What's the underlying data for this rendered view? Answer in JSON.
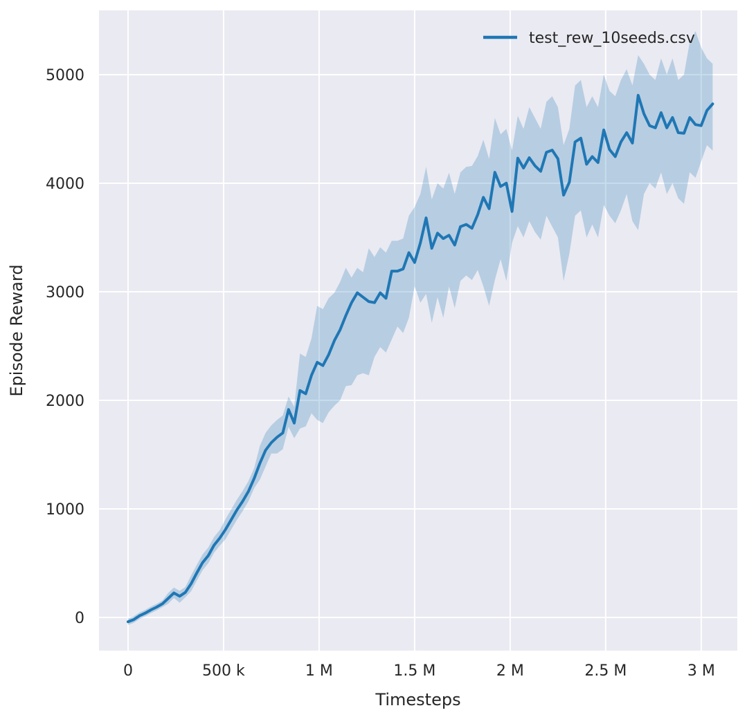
{
  "figure": {
    "background_color": "#ffffff",
    "plot_background_color": "#eaeaf2",
    "gridline_color": "#ffffff",
    "text_color": "#262626"
  },
  "chart_data": {
    "type": "line",
    "title": "",
    "xlabel": "Timesteps",
    "ylabel": "Episode Reward",
    "grid": true,
    "legend_position": "upper right",
    "legend": [
      {
        "label": "test_rew_10seeds.csv",
        "color": "#1f77b4"
      }
    ],
    "xlim": [
      -152000,
      3189000
    ],
    "ylim": [
      -306,
      5592
    ],
    "x_tick_values": [
      0,
      500000,
      1000000,
      1500000,
      2000000,
      2500000,
      3000000
    ],
    "x_tick_labels": [
      "0",
      "500 k",
      "1 M",
      "1.5 M",
      "2 M",
      "2.5 M",
      "3 M"
    ],
    "y_tick_values": [
      0,
      1000,
      2000,
      3000,
      4000,
      5000
    ],
    "y_tick_labels": [
      "0",
      "1000",
      "2000",
      "3000",
      "4000",
      "5000"
    ],
    "series": [
      {
        "name": "test_rew_10seeds.csv",
        "color": "#1f77b4",
        "band_color": "#1f77b4",
        "band_opacity": 0.25,
        "x": [
          0,
          30000,
          60000,
          90000,
          120000,
          150000,
          180000,
          210000,
          240000,
          270000,
          300000,
          330000,
          360000,
          390000,
          420000,
          450000,
          480000,
          510000,
          540000,
          570000,
          600000,
          630000,
          660000,
          690000,
          720000,
          750000,
          780000,
          810000,
          840000,
          870000,
          900000,
          930000,
          960000,
          990000,
          1020000,
          1050000,
          1080000,
          1110000,
          1140000,
          1170000,
          1200000,
          1230000,
          1260000,
          1290000,
          1320000,
          1350000,
          1380000,
          1410000,
          1440000,
          1470000,
          1500000,
          1530000,
          1560000,
          1590000,
          1620000,
          1650000,
          1680000,
          1710000,
          1740000,
          1770000,
          1800000,
          1830000,
          1860000,
          1890000,
          1920000,
          1950000,
          1980000,
          2010000,
          2040000,
          2070000,
          2100000,
          2130000,
          2160000,
          2190000,
          2220000,
          2250000,
          2280000,
          2310000,
          2340000,
          2370000,
          2400000,
          2430000,
          2460000,
          2490000,
          2520000,
          2550000,
          2580000,
          2610000,
          2640000,
          2670000,
          2700000,
          2730000,
          2760000,
          2790000,
          2820000,
          2850000,
          2880000,
          2910000,
          2940000,
          2970000,
          3000000,
          3030000,
          3060000
        ],
        "mean": [
          -40,
          -20,
          15,
          40,
          70,
          95,
          125,
          175,
          225,
          195,
          230,
          310,
          410,
          505,
          570,
          665,
          730,
          810,
          900,
          990,
          1070,
          1160,
          1280,
          1420,
          1540,
          1610,
          1660,
          1700,
          1915,
          1790,
          2090,
          2060,
          2230,
          2350,
          2320,
          2420,
          2550,
          2650,
          2780,
          2900,
          2990,
          2950,
          2910,
          2900,
          2990,
          2940,
          3190,
          3190,
          3210,
          3360,
          3270,
          3450,
          3680,
          3400,
          3540,
          3490,
          3520,
          3430,
          3600,
          3620,
          3585,
          3710,
          3870,
          3765,
          4100,
          3970,
          4000,
          3740,
          4230,
          4140,
          4235,
          4160,
          4110,
          4285,
          4305,
          4225,
          3890,
          4010,
          4380,
          4415,
          4175,
          4245,
          4190,
          4490,
          4310,
          4245,
          4380,
          4465,
          4370,
          4810,
          4640,
          4530,
          4510,
          4650,
          4510,
          4605,
          4465,
          4460,
          4605,
          4540,
          4530,
          4670,
          4730
        ],
        "lower": [
          -70,
          -50,
          -15,
          10,
          40,
          65,
          95,
          125,
          180,
          135,
          185,
          240,
          340,
          435,
          500,
          595,
          660,
          720,
          810,
          900,
          980,
          1070,
          1190,
          1270,
          1390,
          1510,
          1510,
          1550,
          1755,
          1650,
          1740,
          1760,
          1880,
          1820,
          1790,
          1890,
          1950,
          2000,
          2130,
          2140,
          2230,
          2250,
          2230,
          2400,
          2490,
          2440,
          2560,
          2680,
          2620,
          2760,
          3050,
          2900,
          2980,
          2713,
          2950,
          2760,
          3050,
          2850,
          3100,
          3150,
          3108,
          3200,
          3050,
          2870,
          3108,
          3300,
          3100,
          3450,
          3605,
          3500,
          3650,
          3550,
          3480,
          3700,
          3600,
          3500,
          3100,
          3350,
          3700,
          3750,
          3500,
          3620,
          3500,
          3800,
          3700,
          3631,
          3750,
          3900,
          3650,
          3567,
          3900,
          4000,
          3950,
          4100,
          3900,
          4000,
          3860,
          3810,
          4100,
          4050,
          4200,
          4350,
          4300
        ],
        "upper": [
          -10,
          10,
          45,
          70,
          100,
          125,
          155,
          225,
          275,
          245,
          280,
          385,
          485,
          580,
          645,
          740,
          805,
          905,
          995,
          1085,
          1165,
          1255,
          1375,
          1580,
          1700,
          1770,
          1820,
          1860,
          2035,
          1940,
          2430,
          2400,
          2570,
          2870,
          2840,
          2940,
          2990,
          3090,
          3220,
          3130,
          3220,
          3180,
          3400,
          3320,
          3410,
          3360,
          3470,
          3470,
          3490,
          3700,
          3780,
          3900,
          4150,
          3850,
          4000,
          3950,
          4096,
          3900,
          4100,
          4150,
          4159,
          4250,
          4400,
          4223,
          4600,
          4450,
          4500,
          4300,
          4620,
          4500,
          4700,
          4600,
          4500,
          4750,
          4800,
          4700,
          4350,
          4500,
          4900,
          4950,
          4700,
          4800,
          4700,
          5000,
          4850,
          4800,
          4950,
          5050,
          4900,
          5180,
          5100,
          5000,
          4950,
          5150,
          5000,
          5150,
          4950,
          5000,
          5300,
          5400,
          5250,
          5150,
          5100
        ]
      }
    ]
  }
}
